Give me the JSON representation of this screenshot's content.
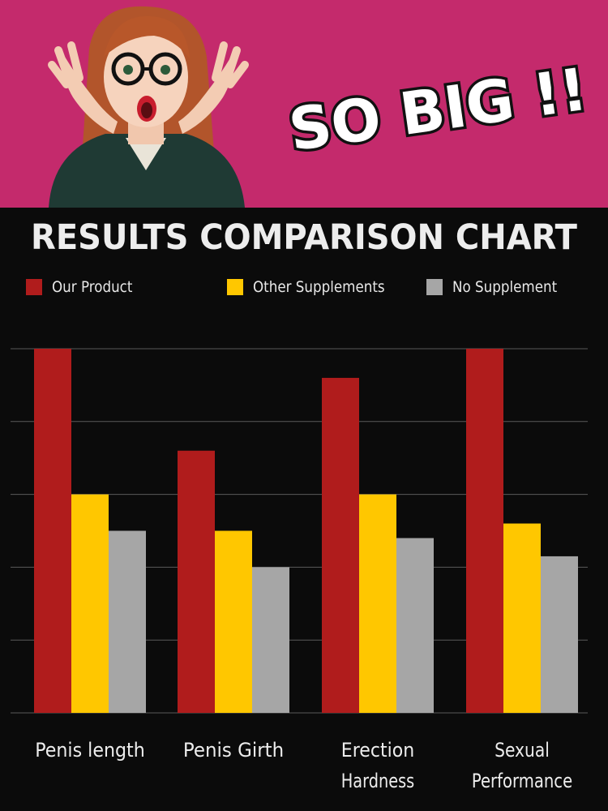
{
  "banner": {
    "tagline": "SO BIG !!",
    "background": "#c42a6c"
  },
  "chart_data": {
    "type": "bar",
    "title": "RESULTS COMPARISON CHART",
    "categories": [
      "Penis length",
      "Penis Girth",
      "Erection Hardness",
      "Sexual Performance"
    ],
    "category_lines": [
      [
        "Penis length"
      ],
      [
        "Penis Girth"
      ],
      [
        "Erection",
        "Hardness"
      ],
      [
        "Sexual",
        "Performance"
      ]
    ],
    "series": [
      {
        "name": "Our Product",
        "color": "#b01c1c",
        "values": [
          5.0,
          3.6,
          4.6,
          5.0
        ]
      },
      {
        "name": "Other Supplements",
        "color": "#ffc700",
        "values": [
          3.0,
          2.5,
          3.0,
          2.6
        ]
      },
      {
        "name": "No Supplement",
        "color": "#a6a6a6",
        "values": [
          2.5,
          2.0,
          2.4,
          2.15
        ]
      }
    ],
    "ylim": [
      0,
      5
    ],
    "grid": true,
    "legend_position": "top"
  }
}
